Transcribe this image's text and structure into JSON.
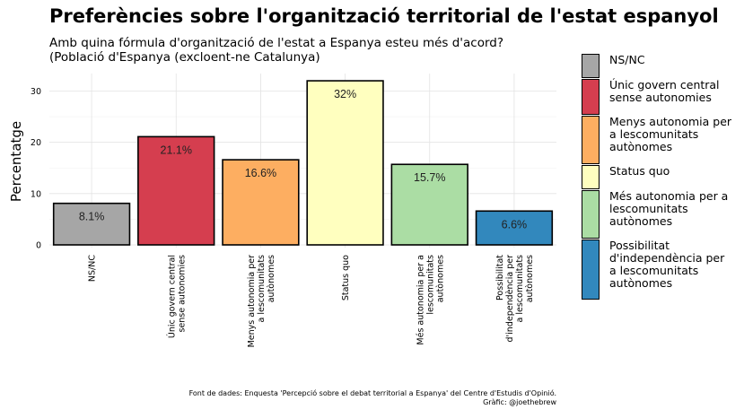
{
  "title": "Preferències sobre l'organització territorial de l'estat espanyol",
  "subtitle": [
    "Amb quina fórmula d'organització de l'estat a Espanya esteu més d'acord?",
    "(Població d'Espanya (excloent-ne Catalunya)"
  ],
  "footer": [
    "Font de dades: Enquesta 'Percepció sobre el debat territorial a Espanya' del Centre d'Estudis d'Opinió.",
    "Gràfic: @joethebrew"
  ],
  "chart_data": {
    "type": "bar",
    "ylabel": "Percentatge",
    "xlabel": "",
    "ylim": [
      0,
      33
    ],
    "yticks": [
      0,
      10,
      20,
      30
    ],
    "grid": true,
    "legend_position": "right",
    "categories": [
      [
        "NS/NC"
      ],
      [
        "Únic govern central",
        "sense autonomies"
      ],
      [
        "Menys autonomia per",
        "a lescomunitats",
        "autònomes"
      ],
      [
        "Status quo"
      ],
      [
        "Més autonomia per a",
        "lescomunitats",
        "autònomes"
      ],
      [
        "Possibilitat",
        "d'independència per",
        "a lescomunitats",
        "autònomes"
      ]
    ],
    "values": [
      8.1,
      21.1,
      16.6,
      32,
      15.7,
      6.6
    ],
    "value_labels": [
      "8.1%",
      "21.1%",
      "16.6%",
      "32%",
      "15.7%",
      "6.6%"
    ],
    "colors": [
      "#a6a6a6",
      "#d53e4f",
      "#fdae61",
      "#ffffbf",
      "#abdda4",
      "#3288bd"
    ],
    "legend": [
      [
        "NS/NC"
      ],
      [
        "Únic govern central",
        "sense autonomies"
      ],
      [
        "Menys autonomia per",
        "a lescomunitats",
        "autònomes"
      ],
      [
        "Status quo"
      ],
      [
        "Més autonomia per a",
        "lescomunitats",
        "autònomes"
      ],
      [
        "Possibilitat",
        "d'independència per",
        "a lescomunitats",
        "autònomes"
      ]
    ]
  }
}
